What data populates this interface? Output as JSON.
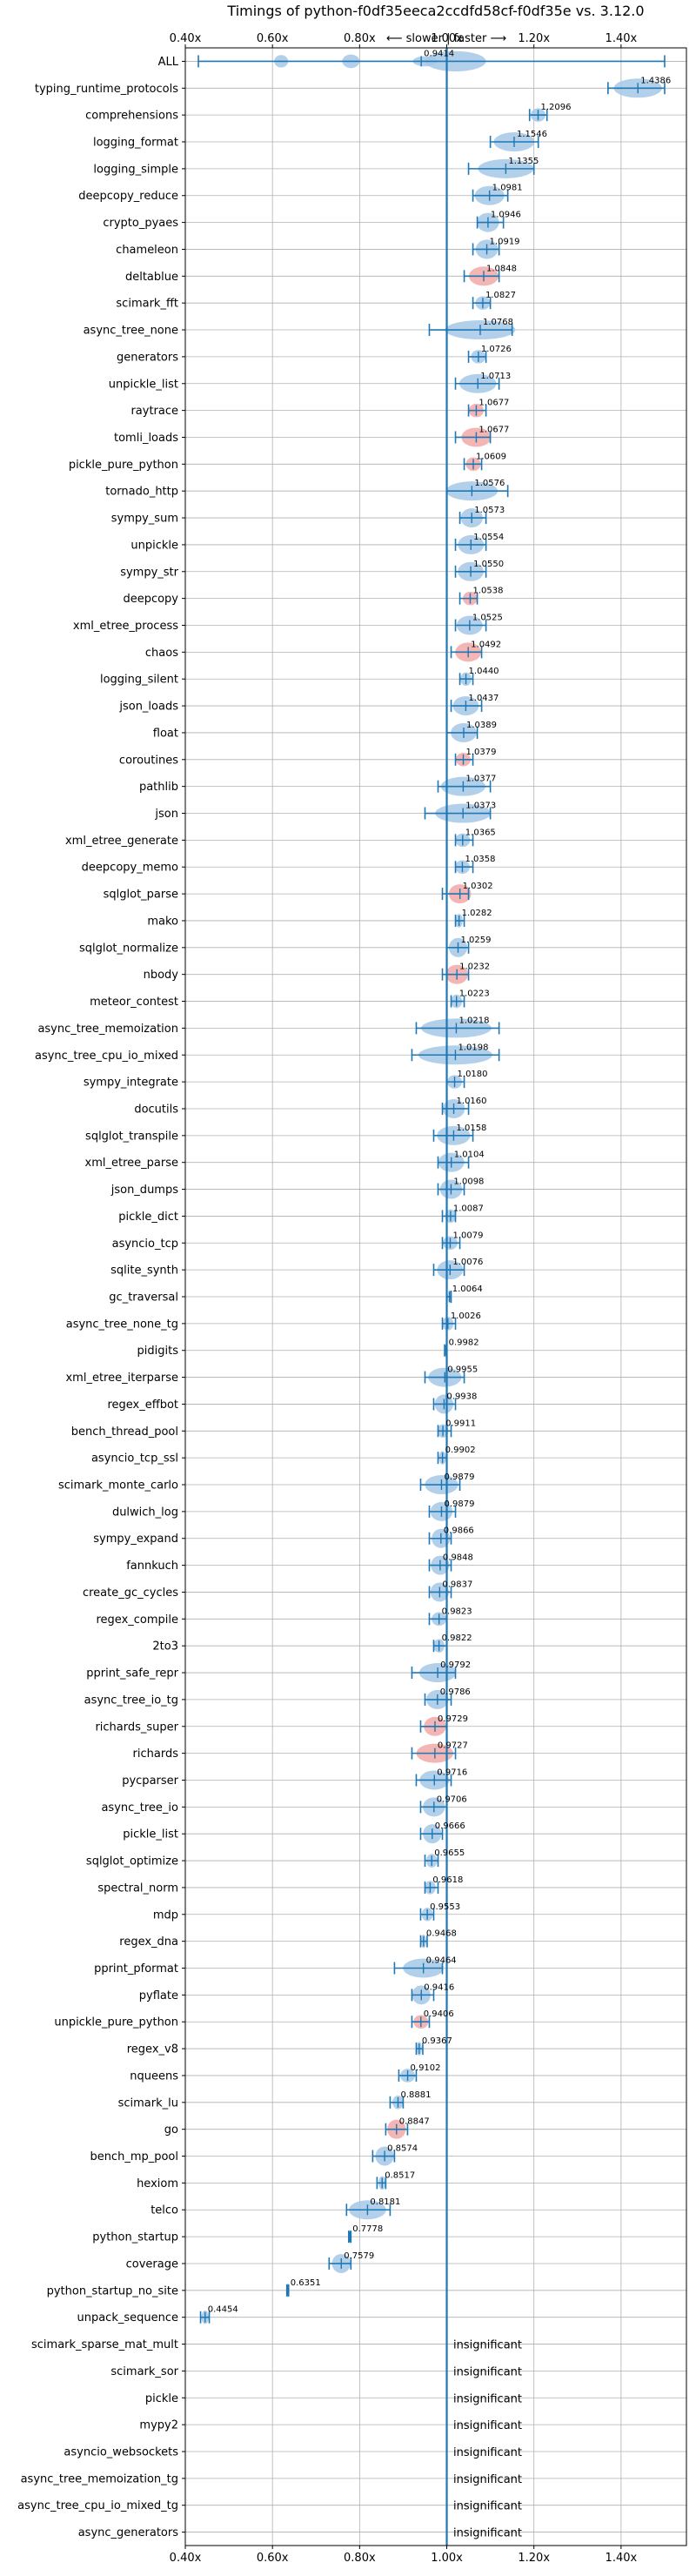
{
  "chart_data": {
    "type": "violin",
    "title": "Timings of python-f0df35eeca2ccdfd58cf-f0df35e vs. 3.12.0",
    "subtitle": "⟵ slower  |  faster ⟶",
    "xlim": [
      0.4,
      1.55
    ],
    "xticks": [
      0.4,
      0.6,
      0.8,
      1.0,
      1.2,
      1.4
    ],
    "xtick_labels": [
      "0.40x",
      "0.60x",
      "0.80x",
      "1.00x",
      "1.20x",
      "1.40x"
    ],
    "reference_line": 1.0,
    "grid": true,
    "insignificant_text": "insignificant",
    "colors": {
      "faster": "#a6c8e6",
      "slower": "#f2a8a8",
      "errorbar": "#1f77b4",
      "reference": "#1f77b4"
    },
    "benchmarks": [
      {
        "name": "ALL",
        "value": 0.9414,
        "label": "0.9414",
        "lo": 0.43,
        "hi": 1.5,
        "status": "faster"
      },
      {
        "name": "typing_runtime_protocols",
        "value": 1.4386,
        "label": "1.4386",
        "lo": 1.37,
        "hi": 1.5,
        "status": "faster"
      },
      {
        "name": "comprehensions",
        "value": 1.2096,
        "label": "1.2096",
        "lo": 1.19,
        "hi": 1.23,
        "status": "faster"
      },
      {
        "name": "logging_format",
        "value": 1.1546,
        "label": "1.1546",
        "lo": 1.1,
        "hi": 1.21,
        "status": "faster"
      },
      {
        "name": "logging_simple",
        "value": 1.1355,
        "label": "1.1355",
        "lo": 1.05,
        "hi": 1.2,
        "status": "faster"
      },
      {
        "name": "deepcopy_reduce",
        "value": 1.0981,
        "label": "1.0981",
        "lo": 1.06,
        "hi": 1.14,
        "status": "faster"
      },
      {
        "name": "crypto_pyaes",
        "value": 1.0946,
        "label": "1.0946",
        "lo": 1.07,
        "hi": 1.13,
        "status": "faster"
      },
      {
        "name": "chameleon",
        "value": 1.0919,
        "label": "1.0919",
        "lo": 1.06,
        "hi": 1.12,
        "status": "faster"
      },
      {
        "name": "deltablue",
        "value": 1.0848,
        "label": "1.0848",
        "lo": 1.04,
        "hi": 1.12,
        "status": "slower"
      },
      {
        "name": "scimark_fft",
        "value": 1.0827,
        "label": "1.0827",
        "lo": 1.06,
        "hi": 1.1,
        "status": "faster"
      },
      {
        "name": "async_tree_none",
        "value": 1.0768,
        "label": "1.0768",
        "lo": 0.96,
        "hi": 1.15,
        "status": "faster"
      },
      {
        "name": "generators",
        "value": 1.0726,
        "label": "1.0726",
        "lo": 1.05,
        "hi": 1.09,
        "status": "faster"
      },
      {
        "name": "unpickle_list",
        "value": 1.0713,
        "label": "1.0713",
        "lo": 1.02,
        "hi": 1.12,
        "status": "faster"
      },
      {
        "name": "raytrace",
        "value": 1.0677,
        "label": "1.0677",
        "lo": 1.05,
        "hi": 1.09,
        "status": "slower"
      },
      {
        "name": "tomli_loads",
        "value": 1.0677,
        "label": "1.0677",
        "lo": 1.02,
        "hi": 1.1,
        "status": "slower"
      },
      {
        "name": "pickle_pure_python",
        "value": 1.0609,
        "label": "1.0609",
        "lo": 1.04,
        "hi": 1.08,
        "status": "slower"
      },
      {
        "name": "tornado_http",
        "value": 1.0576,
        "label": "1.0576",
        "lo": 1.0,
        "hi": 1.14,
        "status": "faster"
      },
      {
        "name": "sympy_sum",
        "value": 1.0573,
        "label": "1.0573",
        "lo": 1.03,
        "hi": 1.09,
        "status": "faster"
      },
      {
        "name": "unpickle",
        "value": 1.0554,
        "label": "1.0554",
        "lo": 1.02,
        "hi": 1.09,
        "status": "faster"
      },
      {
        "name": "sympy_str",
        "value": 1.055,
        "label": "1.0550",
        "lo": 1.02,
        "hi": 1.09,
        "status": "faster"
      },
      {
        "name": "deepcopy",
        "value": 1.0538,
        "label": "1.0538",
        "lo": 1.03,
        "hi": 1.07,
        "status": "slower"
      },
      {
        "name": "xml_etree_process",
        "value": 1.0525,
        "label": "1.0525",
        "lo": 1.02,
        "hi": 1.09,
        "status": "faster"
      },
      {
        "name": "chaos",
        "value": 1.0492,
        "label": "1.0492",
        "lo": 1.01,
        "hi": 1.08,
        "status": "slower"
      },
      {
        "name": "logging_silent",
        "value": 1.044,
        "label": "1.0440",
        "lo": 1.03,
        "hi": 1.06,
        "status": "faster"
      },
      {
        "name": "json_loads",
        "value": 1.0437,
        "label": "1.0437",
        "lo": 1.01,
        "hi": 1.08,
        "status": "faster"
      },
      {
        "name": "float",
        "value": 1.0389,
        "label": "1.0389",
        "lo": 1.0,
        "hi": 1.07,
        "status": "faster"
      },
      {
        "name": "coroutines",
        "value": 1.0379,
        "label": "1.0379",
        "lo": 1.02,
        "hi": 1.06,
        "status": "slower"
      },
      {
        "name": "pathlib",
        "value": 1.0377,
        "label": "1.0377",
        "lo": 0.98,
        "hi": 1.1,
        "status": "faster"
      },
      {
        "name": "json",
        "value": 1.0373,
        "label": "1.0373",
        "lo": 0.95,
        "hi": 1.1,
        "status": "faster"
      },
      {
        "name": "xml_etree_generate",
        "value": 1.0365,
        "label": "1.0365",
        "lo": 1.02,
        "hi": 1.06,
        "status": "faster"
      },
      {
        "name": "deepcopy_memo",
        "value": 1.0358,
        "label": "1.0358",
        "lo": 1.02,
        "hi": 1.06,
        "status": "faster"
      },
      {
        "name": "sqlglot_parse",
        "value": 1.0302,
        "label": "1.0302",
        "lo": 0.99,
        "hi": 1.05,
        "status": "slower"
      },
      {
        "name": "mako",
        "value": 1.0282,
        "label": "1.0282",
        "lo": 1.02,
        "hi": 1.04,
        "status": "faster"
      },
      {
        "name": "sqlglot_normalize",
        "value": 1.0259,
        "label": "1.0259",
        "lo": 1.0,
        "hi": 1.05,
        "status": "faster"
      },
      {
        "name": "nbody",
        "value": 1.0232,
        "label": "1.0232",
        "lo": 0.99,
        "hi": 1.05,
        "status": "slower"
      },
      {
        "name": "meteor_contest",
        "value": 1.0223,
        "label": "1.0223",
        "lo": 1.01,
        "hi": 1.04,
        "status": "faster"
      },
      {
        "name": "async_tree_memoization",
        "value": 1.0218,
        "label": "1.0218",
        "lo": 0.93,
        "hi": 1.12,
        "status": "faster"
      },
      {
        "name": "async_tree_cpu_io_mixed",
        "value": 1.0198,
        "label": "1.0198",
        "lo": 0.92,
        "hi": 1.12,
        "status": "faster"
      },
      {
        "name": "sympy_integrate",
        "value": 1.018,
        "label": "1.0180",
        "lo": 1.0,
        "hi": 1.04,
        "status": "faster"
      },
      {
        "name": "docutils",
        "value": 1.016,
        "label": "1.0160",
        "lo": 0.99,
        "hi": 1.05,
        "status": "faster"
      },
      {
        "name": "sqlglot_transpile",
        "value": 1.0158,
        "label": "1.0158",
        "lo": 0.97,
        "hi": 1.06,
        "status": "faster"
      },
      {
        "name": "xml_etree_parse",
        "value": 1.0104,
        "label": "1.0104",
        "lo": 0.98,
        "hi": 1.05,
        "status": "faster"
      },
      {
        "name": "json_dumps",
        "value": 1.0098,
        "label": "1.0098",
        "lo": 0.98,
        "hi": 1.04,
        "status": "faster"
      },
      {
        "name": "pickle_dict",
        "value": 1.0087,
        "label": "1.0087",
        "lo": 0.99,
        "hi": 1.02,
        "status": "faster"
      },
      {
        "name": "asyncio_tcp",
        "value": 1.0079,
        "label": "1.0079",
        "lo": 0.99,
        "hi": 1.03,
        "status": "faster"
      },
      {
        "name": "sqlite_synth",
        "value": 1.0076,
        "label": "1.0076",
        "lo": 0.97,
        "hi": 1.04,
        "status": "faster"
      },
      {
        "name": "gc_traversal",
        "value": 1.0064,
        "label": "1.0064",
        "lo": 1.0,
        "hi": 1.01,
        "status": "faster"
      },
      {
        "name": "async_tree_none_tg",
        "value": 1.0026,
        "label": "1.0026",
        "lo": 0.99,
        "hi": 1.02,
        "status": "faster"
      },
      {
        "name": "pidigits",
        "value": 0.9982,
        "label": "0.9982",
        "lo": 0.995,
        "hi": 1.0,
        "status": "faster"
      },
      {
        "name": "xml_etree_iterparse",
        "value": 0.9955,
        "label": "0.9955",
        "lo": 0.95,
        "hi": 1.04,
        "status": "faster"
      },
      {
        "name": "regex_effbot",
        "value": 0.9938,
        "label": "0.9938",
        "lo": 0.97,
        "hi": 1.02,
        "status": "faster"
      },
      {
        "name": "bench_thread_pool",
        "value": 0.9911,
        "label": "0.9911",
        "lo": 0.98,
        "hi": 1.01,
        "status": "faster"
      },
      {
        "name": "asyncio_tcp_ssl",
        "value": 0.9902,
        "label": "0.9902",
        "lo": 0.98,
        "hi": 1.0,
        "status": "faster"
      },
      {
        "name": "scimark_monte_carlo",
        "value": 0.9879,
        "label": "0.9879",
        "lo": 0.94,
        "hi": 1.03,
        "status": "faster"
      },
      {
        "name": "dulwich_log",
        "value": 0.9879,
        "label": "0.9879",
        "lo": 0.96,
        "hi": 1.02,
        "status": "faster"
      },
      {
        "name": "sympy_expand",
        "value": 0.9866,
        "label": "0.9866",
        "lo": 0.96,
        "hi": 1.01,
        "status": "faster"
      },
      {
        "name": "fannkuch",
        "value": 0.9848,
        "label": "0.9848",
        "lo": 0.96,
        "hi": 1.01,
        "status": "faster"
      },
      {
        "name": "create_gc_cycles",
        "value": 0.9837,
        "label": "0.9837",
        "lo": 0.96,
        "hi": 1.01,
        "status": "faster"
      },
      {
        "name": "regex_compile",
        "value": 0.9823,
        "label": "0.9823",
        "lo": 0.96,
        "hi": 1.0,
        "status": "faster"
      },
      {
        "name": "2to3",
        "value": 0.9822,
        "label": "0.9822",
        "lo": 0.97,
        "hi": 1.0,
        "status": "faster"
      },
      {
        "name": "pprint_safe_repr",
        "value": 0.9792,
        "label": "0.9792",
        "lo": 0.92,
        "hi": 1.02,
        "status": "faster"
      },
      {
        "name": "async_tree_io_tg",
        "value": 0.9786,
        "label": "0.9786",
        "lo": 0.95,
        "hi": 1.01,
        "status": "faster"
      },
      {
        "name": "richards_super",
        "value": 0.9729,
        "label": "0.9729",
        "lo": 0.94,
        "hi": 1.0,
        "status": "slower"
      },
      {
        "name": "richards",
        "value": 0.9727,
        "label": "0.9727",
        "lo": 0.92,
        "hi": 1.02,
        "status": "slower"
      },
      {
        "name": "pycparser",
        "value": 0.9716,
        "label": "0.9716",
        "lo": 0.93,
        "hi": 1.01,
        "status": "faster"
      },
      {
        "name": "async_tree_io",
        "value": 0.9706,
        "label": "0.9706",
        "lo": 0.94,
        "hi": 1.0,
        "status": "faster"
      },
      {
        "name": "pickle_list",
        "value": 0.9666,
        "label": "0.9666",
        "lo": 0.94,
        "hi": 0.99,
        "status": "faster"
      },
      {
        "name": "sqlglot_optimize",
        "value": 0.9655,
        "label": "0.9655",
        "lo": 0.95,
        "hi": 0.98,
        "status": "faster"
      },
      {
        "name": "spectral_norm",
        "value": 0.9618,
        "label": "0.9618",
        "lo": 0.95,
        "hi": 0.98,
        "status": "faster"
      },
      {
        "name": "mdp",
        "value": 0.9553,
        "label": "0.9553",
        "lo": 0.94,
        "hi": 0.97,
        "status": "faster"
      },
      {
        "name": "regex_dna",
        "value": 0.9468,
        "label": "0.9468",
        "lo": 0.94,
        "hi": 0.955,
        "status": "faster"
      },
      {
        "name": "pprint_pformat",
        "value": 0.9464,
        "label": "0.9464",
        "lo": 0.88,
        "hi": 0.99,
        "status": "faster"
      },
      {
        "name": "pyflate",
        "value": 0.9416,
        "label": "0.9416",
        "lo": 0.92,
        "hi": 0.97,
        "status": "faster"
      },
      {
        "name": "unpickle_pure_python",
        "value": 0.9406,
        "label": "0.9406",
        "lo": 0.92,
        "hi": 0.96,
        "status": "slower"
      },
      {
        "name": "regex_v8",
        "value": 0.9367,
        "label": "0.9367",
        "lo": 0.93,
        "hi": 0.945,
        "status": "faster"
      },
      {
        "name": "nqueens",
        "value": 0.9102,
        "label": "0.9102",
        "lo": 0.89,
        "hi": 0.93,
        "status": "faster"
      },
      {
        "name": "scimark_lu",
        "value": 0.8881,
        "label": "0.8881",
        "lo": 0.87,
        "hi": 0.9,
        "status": "faster"
      },
      {
        "name": "go",
        "value": 0.8847,
        "label": "0.8847",
        "lo": 0.86,
        "hi": 0.91,
        "status": "slower"
      },
      {
        "name": "bench_mp_pool",
        "value": 0.8574,
        "label": "0.8574",
        "lo": 0.83,
        "hi": 0.88,
        "status": "faster"
      },
      {
        "name": "hexiom",
        "value": 0.8517,
        "label": "0.8517",
        "lo": 0.84,
        "hi": 0.86,
        "status": "faster"
      },
      {
        "name": "telco",
        "value": 0.8181,
        "label": "0.8181",
        "lo": 0.77,
        "hi": 0.87,
        "status": "faster"
      },
      {
        "name": "python_startup",
        "value": 0.7778,
        "label": "0.7778",
        "lo": 0.775,
        "hi": 0.78,
        "status": "faster"
      },
      {
        "name": "coverage",
        "value": 0.7579,
        "label": "0.7579",
        "lo": 0.73,
        "hi": 0.78,
        "status": "faster"
      },
      {
        "name": "python_startup_no_site",
        "value": 0.6351,
        "label": "0.6351",
        "lo": 0.633,
        "hi": 0.637,
        "status": "faster"
      },
      {
        "name": "unpack_sequence",
        "value": 0.4454,
        "label": "0.4454",
        "lo": 0.435,
        "hi": 0.455,
        "status": "faster"
      },
      {
        "name": "scimark_sparse_mat_mult",
        "value": null,
        "label": "",
        "status": "insignificant"
      },
      {
        "name": "scimark_sor",
        "value": null,
        "label": "",
        "status": "insignificant"
      },
      {
        "name": "pickle",
        "value": null,
        "label": "",
        "status": "insignificant"
      },
      {
        "name": "mypy2",
        "value": null,
        "label": "",
        "status": "insignificant"
      },
      {
        "name": "asyncio_websockets",
        "value": null,
        "label": "",
        "status": "insignificant"
      },
      {
        "name": "async_tree_memoization_tg",
        "value": null,
        "label": "",
        "status": "insignificant"
      },
      {
        "name": "async_tree_cpu_io_mixed_tg",
        "value": null,
        "label": "",
        "status": "insignificant"
      },
      {
        "name": "async_generators",
        "value": null,
        "label": "",
        "status": "insignificant"
      }
    ]
  }
}
